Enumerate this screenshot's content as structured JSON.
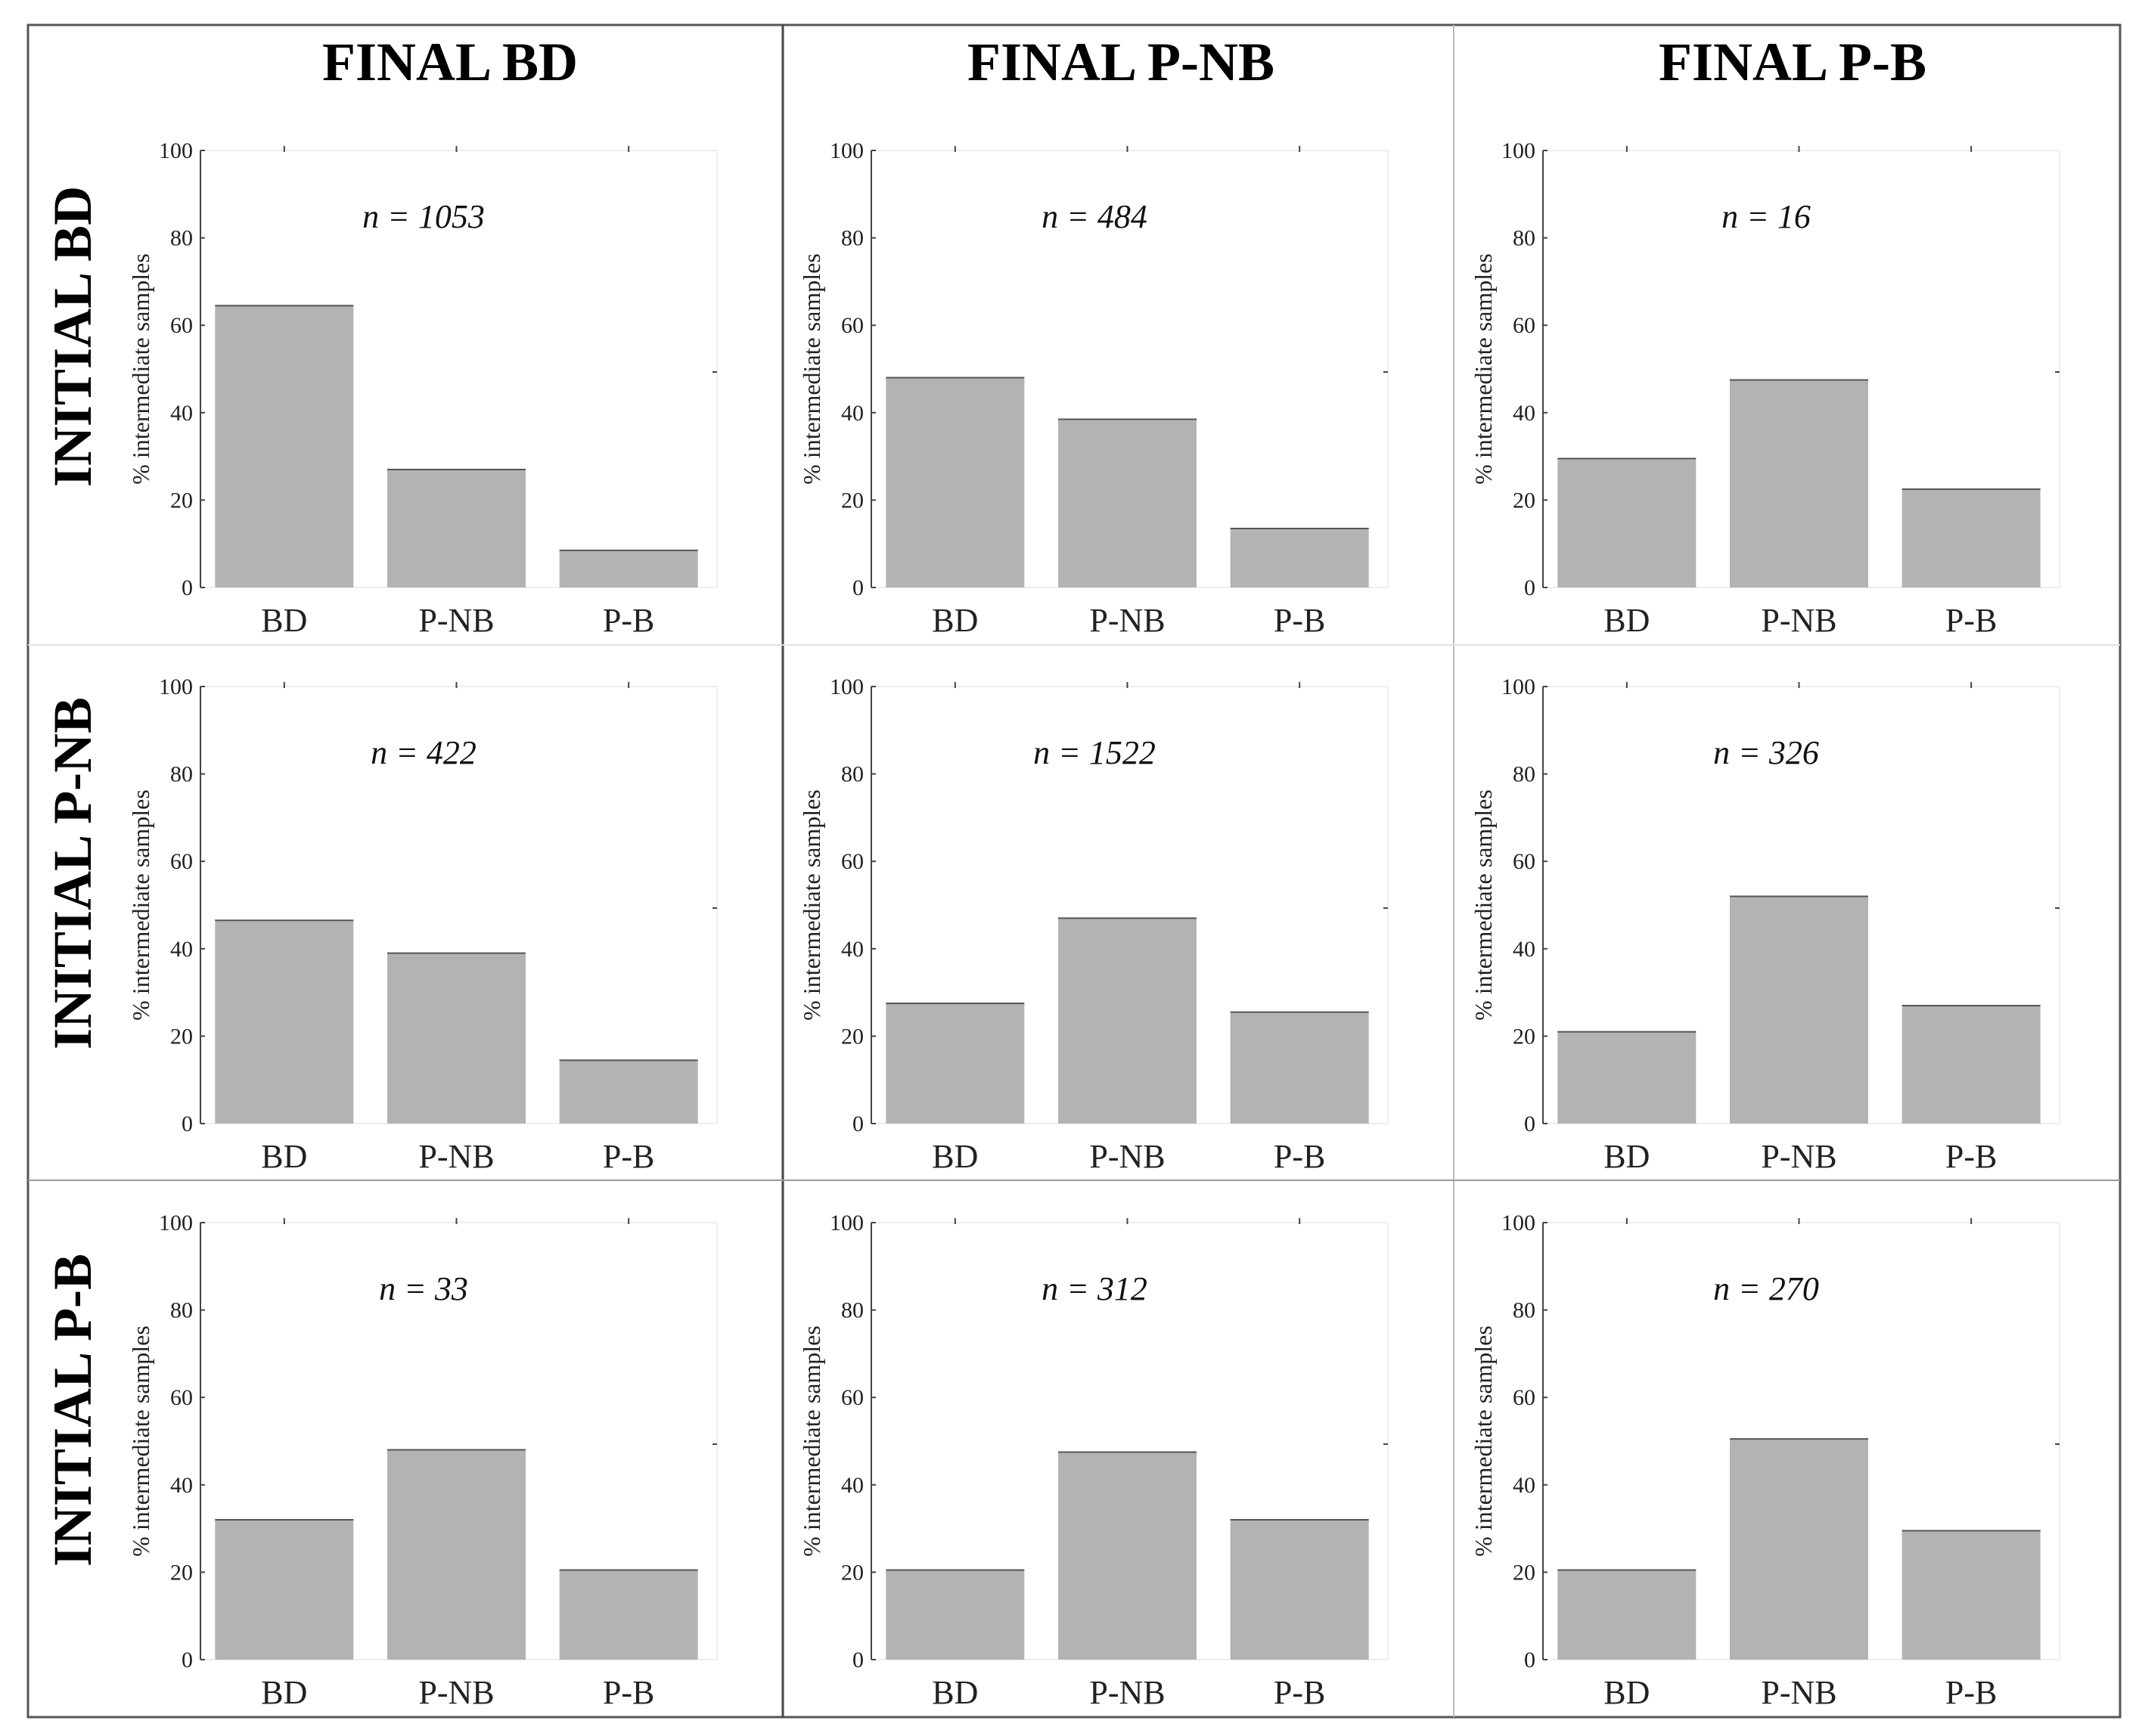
{
  "figure": {
    "column_headers": [
      "FINAL BD",
      "FINAL P-NB",
      "FINAL P-B"
    ],
    "row_headers": [
      "INITIAL BD",
      "INITIAL P-NB",
      "INITIAL P-B"
    ],
    "colors": {
      "bar": "#b3b3b3",
      "bar_edge": "#555555",
      "axis": "#444444",
      "frame": "#555555"
    }
  },
  "chart_data": [
    {
      "type": "bar",
      "row": "INITIAL BD",
      "column": "FINAL BD",
      "annotation": "n = 1053",
      "categories": [
        "BD",
        "P-NB",
        "P-B"
      ],
      "values": [
        64.5,
        27,
        8.5
      ],
      "ylabel": "% intermediate samples",
      "ylim": [
        0,
        100
      ],
      "yticks": [
        "0",
        "20",
        "40",
        "60",
        "80",
        "100"
      ]
    },
    {
      "type": "bar",
      "row": "INITIAL BD",
      "column": "FINAL P-NB",
      "annotation": "n = 484",
      "categories": [
        "BD",
        "P-NB",
        "P-B"
      ],
      "values": [
        48,
        38.5,
        13.5
      ],
      "ylabel": "% intermediate samples",
      "ylim": [
        0,
        100
      ],
      "yticks": [
        "0",
        "20",
        "40",
        "60",
        "80",
        "100"
      ]
    },
    {
      "type": "bar",
      "row": "INITIAL BD",
      "column": "FINAL P-B",
      "annotation": "n = 16",
      "categories": [
        "BD",
        "P-NB",
        "P-B"
      ],
      "values": [
        29.5,
        47.5,
        22.5
      ],
      "ylabel": "% intermediate samples",
      "ylim": [
        0,
        100
      ],
      "yticks": [
        "0",
        "20",
        "40",
        "60",
        "80",
        "100"
      ]
    },
    {
      "type": "bar",
      "row": "INITIAL P-NB",
      "column": "FINAL BD",
      "annotation": "n = 422",
      "categories": [
        "BD",
        "P-NB",
        "P-B"
      ],
      "values": [
        46.5,
        39,
        14.5
      ],
      "ylabel": "% intermediate samples",
      "ylim": [
        0,
        100
      ],
      "yticks": [
        "0",
        "20",
        "40",
        "60",
        "80",
        "100"
      ]
    },
    {
      "type": "bar",
      "row": "INITIAL P-NB",
      "column": "FINAL P-NB",
      "annotation": "n = 1522",
      "categories": [
        "BD",
        "P-NB",
        "P-B"
      ],
      "values": [
        27.5,
        47,
        25.5
      ],
      "ylabel": "% intermediate samples",
      "ylim": [
        0,
        100
      ],
      "yticks": [
        "0",
        "20",
        "40",
        "60",
        "80",
        "100"
      ]
    },
    {
      "type": "bar",
      "row": "INITIAL P-NB",
      "column": "FINAL P-B",
      "annotation": "n = 326",
      "categories": [
        "BD",
        "P-NB",
        "P-B"
      ],
      "values": [
        21,
        52,
        27
      ],
      "ylabel": "% intermediate samples",
      "ylim": [
        0,
        100
      ],
      "yticks": [
        "0",
        "20",
        "40",
        "60",
        "80",
        "100"
      ]
    },
    {
      "type": "bar",
      "row": "INITIAL P-B",
      "column": "FINAL BD",
      "annotation": "n = 33",
      "categories": [
        "BD",
        "P-NB",
        "P-B"
      ],
      "values": [
        32,
        48,
        20.5
      ],
      "ylabel": "% intermediate samples",
      "ylim": [
        0,
        100
      ],
      "yticks": [
        "0",
        "20",
        "40",
        "60",
        "80",
        "100"
      ]
    },
    {
      "type": "bar",
      "row": "INITIAL P-B",
      "column": "FINAL P-NB",
      "annotation": "n = 312",
      "categories": [
        "BD",
        "P-NB",
        "P-B"
      ],
      "values": [
        20.5,
        47.5,
        32
      ],
      "ylabel": "% intermediate samples",
      "ylim": [
        0,
        100
      ],
      "yticks": [
        "0",
        "20",
        "40",
        "60",
        "80",
        "100"
      ]
    },
    {
      "type": "bar",
      "row": "INITIAL P-B",
      "column": "FINAL P-B",
      "annotation": "n = 270",
      "categories": [
        "BD",
        "P-NB",
        "P-B"
      ],
      "values": [
        20.5,
        50.5,
        29.5
      ],
      "ylabel": "% intermediate samples",
      "ylim": [
        0,
        100
      ],
      "yticks": [
        "0",
        "20",
        "40",
        "60",
        "80",
        "100"
      ]
    }
  ]
}
